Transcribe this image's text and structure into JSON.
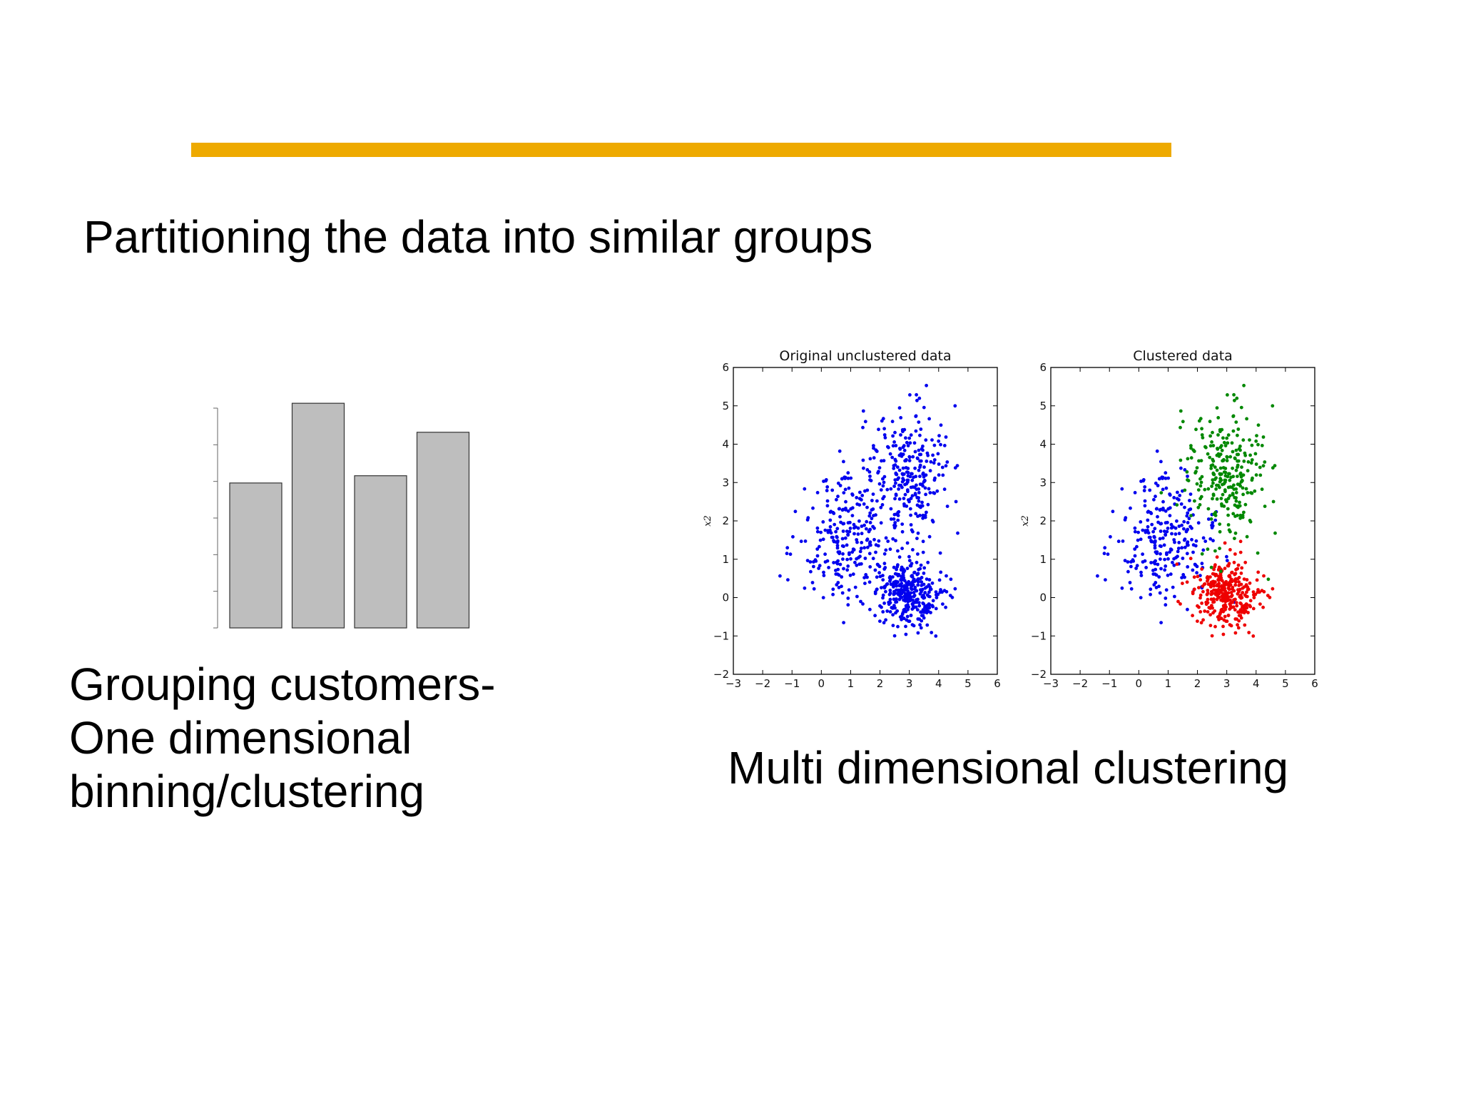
{
  "slide": {
    "accent_color": "#EEAA00",
    "subtitle": "Partitioning the data into similar groups",
    "left_caption_lines": [
      "Grouping customers-",
      "One dimensional",
      "binning/clustering"
    ],
    "right_caption": "Multi dimensional clustering"
  },
  "chart_data": [
    {
      "type": "bar",
      "title": "",
      "categories": [
        "",
        "",
        "",
        ""
      ],
      "values": [
        4.0,
        6.2,
        4.2,
        5.4
      ],
      "ylim": [
        0,
        6.4
      ],
      "bar_color": "#BEBEBE",
      "grid": false
    },
    {
      "type": "scatter",
      "title": "Original unclustered data",
      "xlabel": "",
      "ylabel": "x2",
      "xlim": [
        -3,
        6
      ],
      "ylim": [
        -2,
        6
      ],
      "xticks": [
        "−3",
        "−2",
        "−1",
        "0",
        "1",
        "2",
        "3",
        "4",
        "5",
        "6"
      ],
      "yticks": [
        "−2",
        "−1",
        "0",
        "1",
        "2",
        "3",
        "4",
        "5",
        "6"
      ],
      "grid": false,
      "series": [
        {
          "color": "#0000EE",
          "center": [
            0.8,
            1.5
          ],
          "spread": [
            0.85,
            0.85
          ],
          "n": 260
        },
        {
          "color": "#0000EE",
          "center": [
            3.0,
            0.1
          ],
          "spread": [
            0.55,
            0.45
          ],
          "n": 320
        },
        {
          "color": "#0000EE",
          "center": [
            3.0,
            3.2
          ],
          "spread": [
            0.7,
            0.9
          ],
          "n": 270
        }
      ]
    },
    {
      "type": "scatter",
      "title": "Clustered data",
      "xlabel": "",
      "ylabel": "x2",
      "xlim": [
        -3,
        6
      ],
      "ylim": [
        -2,
        6
      ],
      "xticks": [
        "−3",
        "−2",
        "−1",
        "0",
        "1",
        "2",
        "3",
        "4",
        "5",
        "6"
      ],
      "yticks": [
        "−2",
        "−1",
        "0",
        "1",
        "2",
        "3",
        "4",
        "5",
        "6"
      ],
      "grid": false,
      "series": [
        {
          "color": "#0000EE",
          "center": [
            0.8,
            1.5
          ],
          "spread": [
            0.85,
            0.85
          ],
          "n": 260
        },
        {
          "color": "#EE0000",
          "center": [
            3.0,
            0.1
          ],
          "spread": [
            0.55,
            0.45
          ],
          "n": 320
        },
        {
          "color": "#008800",
          "center": [
            3.0,
            3.2
          ],
          "spread": [
            0.7,
            0.9
          ],
          "n": 270
        }
      ]
    }
  ]
}
